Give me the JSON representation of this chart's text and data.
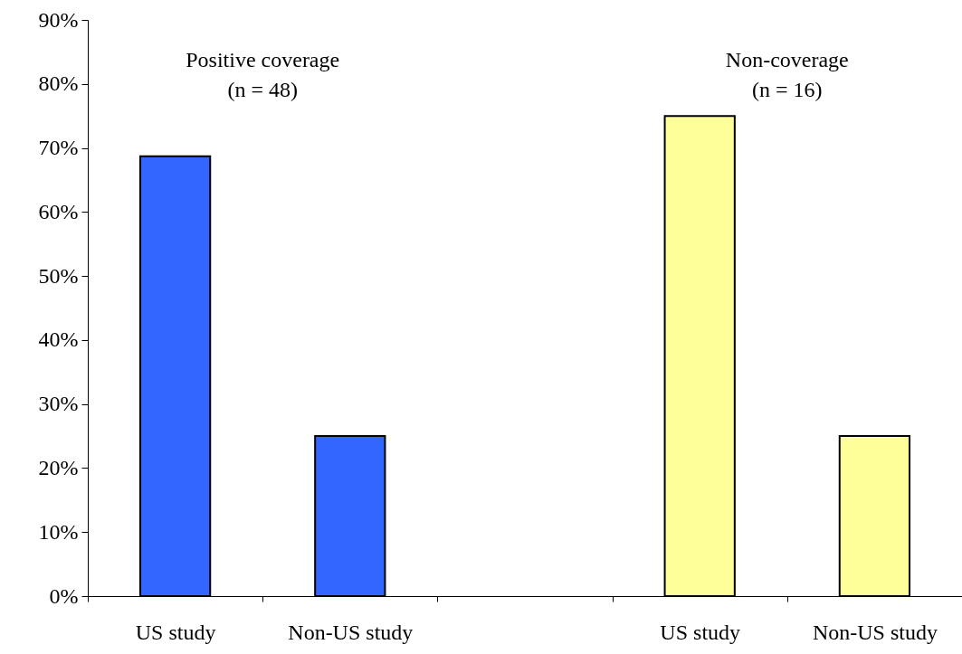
{
  "chart_data": {
    "type": "bar",
    "categories": [
      "US study",
      "Non-US study",
      null,
      "US study",
      "Non-US study"
    ],
    "values": [
      68.7,
      25,
      null,
      75,
      25
    ],
    "colors": [
      "#3366ff",
      "#3366ff",
      "#3366ff",
      "#ffff99",
      "#ffff99"
    ],
    "ylim": [
      0,
      90
    ],
    "yticks": [
      {
        "value": 0,
        "label": "0%"
      },
      {
        "value": 10,
        "label": "10%"
      },
      {
        "value": 20,
        "label": "20%"
      },
      {
        "value": 30,
        "label": "30%"
      },
      {
        "value": 40,
        "label": "40%"
      },
      {
        "value": 50,
        "label": "50%"
      },
      {
        "value": 60,
        "label": "60%"
      },
      {
        "value": 70,
        "label": "70%"
      },
      {
        "value": 80,
        "label": "80%"
      },
      {
        "value": 90,
        "label": "90%"
      }
    ],
    "annotations": [
      "Positive coverage\n(n = 48)",
      "Non-coverage\n(n = 16)"
    ],
    "grid": false
  }
}
